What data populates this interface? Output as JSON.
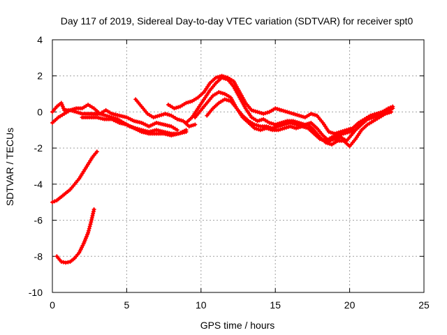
{
  "chart_data": {
    "type": "scatter",
    "title": "Day 117 of 2019, Sidereal Day-to-day VTEC variation (SDTVAR) for receiver spt0",
    "xlabel": "GPS time / hours",
    "ylabel": "SDTVAR / TECUs",
    "xlim": [
      0,
      25
    ],
    "ylim": [
      -10,
      4
    ],
    "xticks": [
      0,
      5,
      10,
      15,
      20,
      25
    ],
    "yticks": [
      -10,
      -8,
      -6,
      -4,
      -2,
      0,
      2,
      4
    ],
    "xtick_labels": [
      "0",
      "5",
      "10",
      "15",
      "20",
      "25"
    ],
    "ytick_labels": [
      "-10",
      "-8",
      "-6",
      "-4",
      "-2",
      "0",
      "2",
      "4"
    ],
    "grid": true,
    "color": "#ff0000",
    "marker": "plus",
    "series": [
      {
        "name": "track-1",
        "points": [
          [
            0.0,
            0.0
          ],
          [
            0.3,
            0.3
          ],
          [
            0.6,
            0.5
          ],
          [
            0.8,
            0.1
          ],
          [
            1.2,
            0.1
          ],
          [
            1.6,
            0.2
          ],
          [
            2.0,
            0.2
          ],
          [
            2.4,
            0.4
          ],
          [
            2.8,
            0.2
          ],
          [
            3.2,
            -0.1
          ],
          [
            3.6,
            0.1
          ],
          [
            4.0,
            -0.1
          ],
          [
            4.5,
            -0.2
          ],
          [
            5.0,
            -0.3
          ],
          [
            5.5,
            -0.5
          ],
          [
            6.0,
            -0.6
          ],
          [
            6.5,
            -0.8
          ],
          [
            7.0,
            -0.6
          ],
          [
            7.5,
            -0.7
          ],
          [
            8.0,
            -0.8
          ],
          [
            8.4,
            -1.0
          ]
        ]
      },
      {
        "name": "track-2",
        "points": [
          [
            0.0,
            -0.6
          ],
          [
            0.4,
            -0.3
          ],
          [
            0.8,
            -0.1
          ],
          [
            1.2,
            0.1
          ],
          [
            1.6,
            0.0
          ],
          [
            2.0,
            -0.1
          ],
          [
            2.4,
            -0.1
          ],
          [
            2.8,
            -0.1
          ],
          [
            3.2,
            -0.1
          ],
          [
            3.6,
            -0.2
          ],
          [
            4.0,
            -0.3
          ],
          [
            4.4,
            -0.4
          ],
          [
            4.8,
            -0.6
          ],
          [
            5.2,
            -0.8
          ],
          [
            5.6,
            -0.9
          ],
          [
            6.0,
            -1.0
          ],
          [
            6.5,
            -1.1
          ],
          [
            7.0,
            -1.0
          ],
          [
            7.5,
            -1.1
          ],
          [
            8.0,
            -1.2
          ],
          [
            8.5,
            -1.2
          ],
          [
            9.0,
            -1.0
          ]
        ]
      },
      {
        "name": "track-3",
        "points": [
          [
            2.0,
            -0.3
          ],
          [
            2.5,
            -0.3
          ],
          [
            3.0,
            -0.3
          ],
          [
            3.5,
            -0.4
          ],
          [
            4.0,
            -0.4
          ],
          [
            4.5,
            -0.6
          ],
          [
            5.0,
            -0.7
          ],
          [
            5.5,
            -0.9
          ],
          [
            6.0,
            -1.1
          ],
          [
            6.5,
            -1.2
          ],
          [
            7.0,
            -1.2
          ],
          [
            7.5,
            -1.2
          ],
          [
            8.0,
            -1.3
          ],
          [
            8.5,
            -1.2
          ],
          [
            9.0,
            -1.1
          ]
        ]
      },
      {
        "name": "track-4",
        "points": [
          [
            5.6,
            0.7
          ],
          [
            6.0,
            0.3
          ],
          [
            6.4,
            -0.1
          ],
          [
            6.8,
            -0.3
          ],
          [
            7.2,
            -0.2
          ],
          [
            7.6,
            -0.1
          ],
          [
            8.0,
            -0.2
          ],
          [
            8.4,
            -0.4
          ],
          [
            8.8,
            -0.5
          ],
          [
            9.2,
            -0.8
          ],
          [
            9.6,
            -0.7
          ]
        ]
      },
      {
        "name": "track-5",
        "points": [
          [
            7.8,
            0.4
          ],
          [
            8.2,
            0.2
          ],
          [
            8.6,
            0.3
          ],
          [
            9.0,
            0.5
          ],
          [
            9.4,
            0.6
          ],
          [
            9.8,
            0.8
          ],
          [
            10.2,
            1.1
          ],
          [
            10.6,
            1.6
          ],
          [
            11.0,
            1.9
          ],
          [
            11.4,
            2.0
          ],
          [
            11.8,
            1.9
          ],
          [
            12.2,
            1.7
          ],
          [
            12.6,
            1.1
          ],
          [
            13.0,
            0.5
          ],
          [
            13.4,
            0.1
          ],
          [
            13.8,
            0.0
          ],
          [
            14.2,
            -0.1
          ],
          [
            14.6,
            0.0
          ],
          [
            15.0,
            0.2
          ],
          [
            15.4,
            0.1
          ],
          [
            15.8,
            0.0
          ],
          [
            16.2,
            -0.1
          ],
          [
            16.6,
            -0.2
          ],
          [
            17.0,
            -0.3
          ],
          [
            17.4,
            -0.1
          ],
          [
            17.8,
            -0.2
          ],
          [
            18.2,
            -0.6
          ],
          [
            18.6,
            -1.1
          ],
          [
            19.0,
            -1.2
          ],
          [
            19.4,
            -1.1
          ],
          [
            19.8,
            -1.0
          ],
          [
            20.2,
            -0.9
          ],
          [
            20.6,
            -0.6
          ],
          [
            21.0,
            -0.4
          ],
          [
            21.4,
            -0.2
          ],
          [
            21.8,
            -0.1
          ],
          [
            22.2,
            0.0
          ],
          [
            22.6,
            0.2
          ],
          [
            22.9,
            0.3
          ]
        ]
      },
      {
        "name": "track-6",
        "points": [
          [
            9.0,
            -0.6
          ],
          [
            9.4,
            -0.3
          ],
          [
            9.8,
            0.2
          ],
          [
            10.2,
            0.7
          ],
          [
            10.6,
            1.2
          ],
          [
            11.0,
            1.6
          ],
          [
            11.4,
            1.9
          ],
          [
            11.8,
            1.8
          ],
          [
            12.2,
            1.4
          ],
          [
            12.6,
            0.8
          ],
          [
            13.0,
            0.2
          ],
          [
            13.4,
            -0.3
          ],
          [
            13.8,
            -0.5
          ],
          [
            14.2,
            -0.4
          ],
          [
            14.6,
            -0.6
          ],
          [
            15.0,
            -0.7
          ],
          [
            15.4,
            -0.6
          ],
          [
            15.8,
            -0.5
          ],
          [
            16.2,
            -0.5
          ],
          [
            16.6,
            -0.6
          ],
          [
            17.0,
            -0.7
          ],
          [
            17.4,
            -0.6
          ],
          [
            17.8,
            -0.9
          ],
          [
            18.2,
            -1.3
          ],
          [
            18.6,
            -1.6
          ],
          [
            19.0,
            -1.5
          ],
          [
            19.4,
            -1.4
          ],
          [
            19.8,
            -1.6
          ],
          [
            20.2,
            -1.2
          ],
          [
            20.6,
            -0.8
          ],
          [
            21.0,
            -0.5
          ],
          [
            21.4,
            -0.3
          ],
          [
            21.8,
            -0.2
          ],
          [
            22.2,
            0.0
          ],
          [
            22.6,
            0.1
          ],
          [
            22.9,
            0.2
          ]
        ]
      },
      {
        "name": "track-7",
        "points": [
          [
            9.6,
            -0.3
          ],
          [
            10.0,
            0.1
          ],
          [
            10.4,
            0.5
          ],
          [
            10.8,
            0.9
          ],
          [
            11.2,
            1.1
          ],
          [
            11.6,
            1.0
          ],
          [
            12.0,
            0.8
          ],
          [
            12.4,
            0.2
          ],
          [
            12.8,
            -0.3
          ],
          [
            13.2,
            -0.6
          ],
          [
            13.6,
            -0.9
          ],
          [
            14.0,
            -1.0
          ],
          [
            14.4,
            -0.9
          ],
          [
            14.8,
            -1.0
          ],
          [
            15.2,
            -1.0
          ],
          [
            15.6,
            -0.9
          ],
          [
            16.0,
            -0.8
          ],
          [
            16.4,
            -0.9
          ],
          [
            16.8,
            -0.8
          ],
          [
            17.2,
            -0.7
          ],
          [
            17.6,
            -1.0
          ],
          [
            18.0,
            -1.4
          ],
          [
            18.4,
            -1.7
          ],
          [
            18.8,
            -1.8
          ],
          [
            19.2,
            -1.6
          ],
          [
            19.6,
            -1.6
          ],
          [
            20.0,
            -1.9
          ],
          [
            20.4,
            -1.5
          ],
          [
            20.8,
            -1.0
          ],
          [
            21.2,
            -0.7
          ],
          [
            21.6,
            -0.5
          ],
          [
            22.0,
            -0.3
          ],
          [
            22.4,
            -0.1
          ],
          [
            22.8,
            0.0
          ]
        ]
      },
      {
        "name": "track-8",
        "points": [
          [
            10.4,
            -0.2
          ],
          [
            10.8,
            0.2
          ],
          [
            11.2,
            0.5
          ],
          [
            11.6,
            0.7
          ],
          [
            12.0,
            0.6
          ],
          [
            12.4,
            0.2
          ],
          [
            12.8,
            -0.2
          ],
          [
            13.2,
            -0.5
          ],
          [
            13.6,
            -0.7
          ],
          [
            14.0,
            -0.8
          ],
          [
            14.4,
            -0.8
          ],
          [
            14.8,
            -0.9
          ],
          [
            15.2,
            -0.8
          ],
          [
            15.6,
            -0.7
          ],
          [
            16.0,
            -0.6
          ],
          [
            16.4,
            -0.7
          ],
          [
            16.8,
            -0.8
          ],
          [
            17.2,
            -0.9
          ],
          [
            17.6,
            -1.2
          ],
          [
            18.0,
            -1.5
          ],
          [
            18.4,
            -1.6
          ],
          [
            18.8,
            -1.4
          ],
          [
            19.2,
            -1.3
          ],
          [
            19.6,
            -1.2
          ],
          [
            20.0,
            -1.1
          ],
          [
            20.4,
            -1.0
          ],
          [
            20.8,
            -0.7
          ],
          [
            21.2,
            -0.4
          ],
          [
            21.6,
            -0.3
          ],
          [
            22.0,
            -0.2
          ],
          [
            22.4,
            0.0
          ]
        ]
      },
      {
        "name": "track-9",
        "points": [
          [
            0.0,
            -5.0
          ],
          [
            0.3,
            -4.9
          ],
          [
            0.6,
            -4.7
          ],
          [
            0.9,
            -4.5
          ],
          [
            1.2,
            -4.3
          ],
          [
            1.5,
            -4.0
          ],
          [
            1.8,
            -3.7
          ],
          [
            2.1,
            -3.3
          ],
          [
            2.4,
            -2.9
          ],
          [
            2.7,
            -2.5
          ],
          [
            3.0,
            -2.2
          ]
        ]
      },
      {
        "name": "track-10",
        "points": [
          [
            0.3,
            -8.0
          ],
          [
            0.6,
            -8.3
          ],
          [
            0.9,
            -8.35
          ],
          [
            1.2,
            -8.3
          ],
          [
            1.5,
            -8.1
          ],
          [
            1.8,
            -7.8
          ],
          [
            2.1,
            -7.3
          ],
          [
            2.4,
            -6.7
          ],
          [
            2.6,
            -6.1
          ],
          [
            2.8,
            -5.4
          ]
        ]
      }
    ]
  }
}
